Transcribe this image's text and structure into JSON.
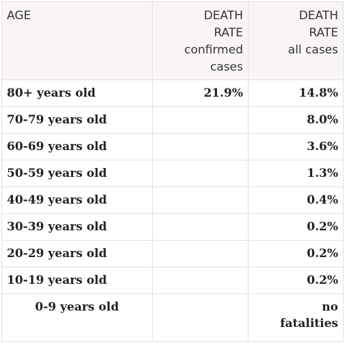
{
  "headers": {
    "age": "AGE",
    "confirmed": [
      "DEATH",
      "RATE",
      "confirmed",
      "cases"
    ],
    "all": [
      "DEATH",
      "RATE",
      "all cases"
    ]
  },
  "rows": [
    {
      "age": "80+ years old",
      "confirmed": "21.9%",
      "all": "14.8%"
    },
    {
      "age": "70-79 years old",
      "confirmed": "",
      "all": "8.0%"
    },
    {
      "age": "60-69 years old",
      "confirmed": "",
      "all": "3.6%"
    },
    {
      "age": "50-59 years old",
      "confirmed": "",
      "all": "1.3%"
    },
    {
      "age": "40-49 years old",
      "confirmed": "",
      "all": "0.4%"
    },
    {
      "age": "30-39 years old",
      "confirmed": "",
      "all": "0.2%"
    },
    {
      "age": "20-29 years old",
      "confirmed": "",
      "all": "0.2%"
    },
    {
      "age": "10-19 years old",
      "confirmed": "",
      "all": "0.2%"
    },
    {
      "age": "0-9 years old",
      "confirmed": "",
      "all": [
        "no",
        "fatalities"
      ]
    }
  ]
}
